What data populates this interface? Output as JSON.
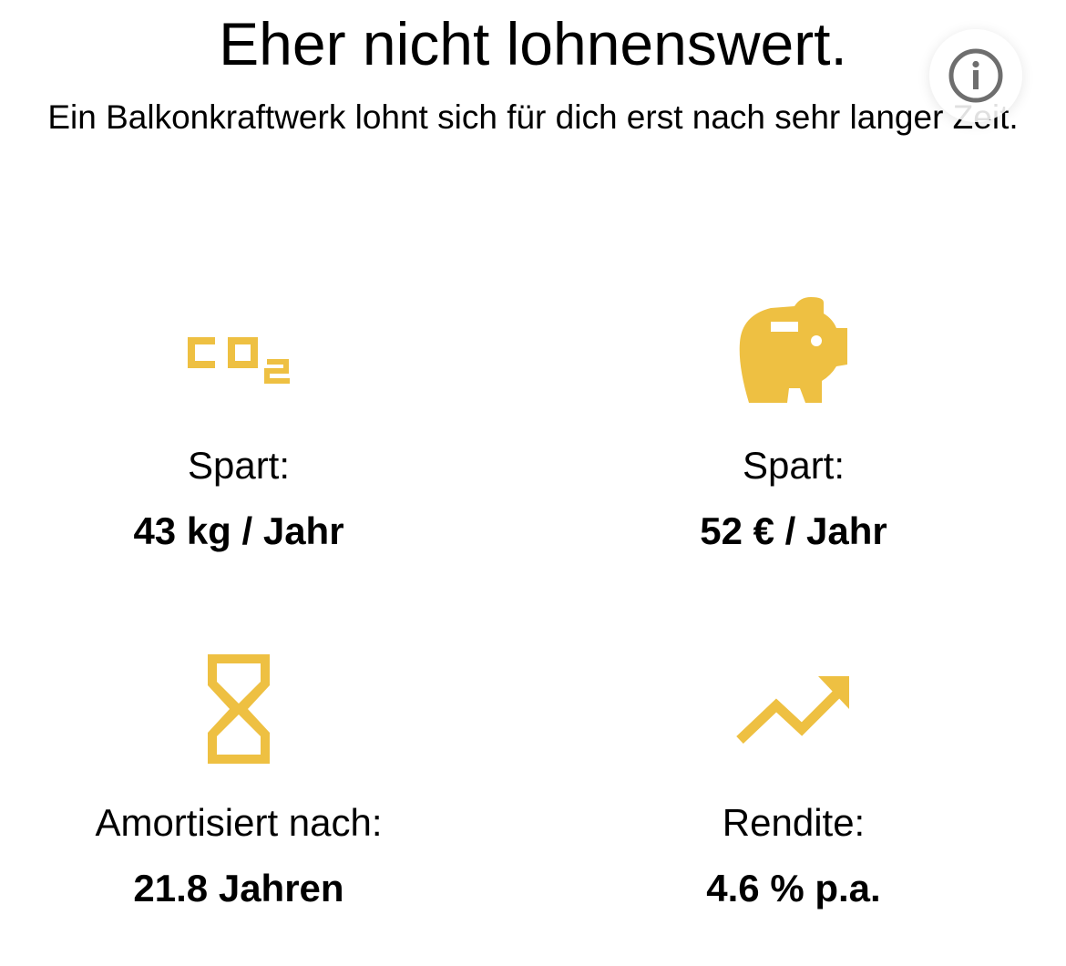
{
  "header": {
    "title": "Eher nicht lohnenswert.",
    "subtitle": "Ein Balkonkraftwerk lohnt sich für dich erst nach sehr langer Zeit."
  },
  "info_button": {
    "icon": "info-circle-icon"
  },
  "accent_color": "#EEC042",
  "stats": {
    "co2": {
      "icon": "co2-icon",
      "label": "Spart:",
      "value": "43 kg / Jahr"
    },
    "money": {
      "icon": "piggy-bank-icon",
      "label": "Spart:",
      "value": "52 € / Jahr"
    },
    "amortization": {
      "icon": "hourglass-icon",
      "label": "Amortisiert nach:",
      "value": "21.8 Jahren"
    },
    "return": {
      "icon": "trending-up-icon",
      "label": "Rendite:",
      "value": "4.6 % p.a."
    }
  }
}
